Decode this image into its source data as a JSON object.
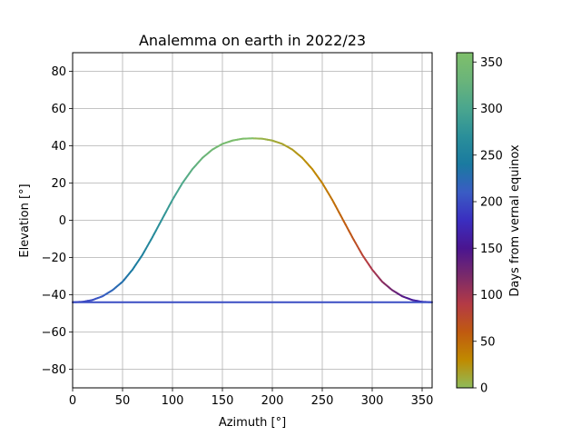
{
  "chart_data": {
    "type": "line",
    "title": "Analemma on earth in 2022/23",
    "xlabel": "Azimuth [°]",
    "ylabel": "Elevation [°]",
    "xlim": [
      0,
      360
    ],
    "ylim": [
      -90,
      90
    ],
    "xticks": [
      0,
      50,
      100,
      150,
      200,
      250,
      300,
      350
    ],
    "yticks": [
      -80,
      -60,
      -40,
      -20,
      0,
      20,
      40,
      60,
      80
    ],
    "grid": true,
    "colorbar": {
      "label": "Days from vernal equinox",
      "range": [
        0,
        360
      ],
      "ticks": [
        0,
        50,
        100,
        150,
        200,
        250,
        300,
        350
      ],
      "colormap": [
        "#8fbc5a",
        "#c08a00",
        "#c05a10",
        "#b43a45",
        "#7a2a6a",
        "#4a1590",
        "#3a2ec0",
        "#3a5cc4",
        "#1a7aa0",
        "#2a8f9a",
        "#4aa68e",
        "#6ab47a",
        "#7fbf6a"
      ]
    },
    "series": [
      {
        "type": "colored_line",
        "color_by": "days_from_vernal_equinox",
        "points": [
          {
            "azimuth": 180,
            "elevation": 44.0,
            "day": 0
          },
          {
            "azimuth": 190,
            "elevation": 43.8,
            "day": 5
          },
          {
            "azimuth": 200,
            "elevation": 42.8,
            "day": 10
          },
          {
            "azimuth": 210,
            "elevation": 41.0,
            "day": 15
          },
          {
            "azimuth": 220,
            "elevation": 38.0,
            "day": 20
          },
          {
            "azimuth": 230,
            "elevation": 33.5,
            "day": 25
          },
          {
            "azimuth": 240,
            "elevation": 27.5,
            "day": 30
          },
          {
            "azimuth": 250,
            "elevation": 20.0,
            "day": 36
          },
          {
            "azimuth": 260,
            "elevation": 11.0,
            "day": 45
          },
          {
            "azimuth": 270,
            "elevation": 1.0,
            "day": 55
          },
          {
            "azimuth": 280,
            "elevation": -9.0,
            "day": 65
          },
          {
            "azimuth": 290,
            "elevation": -18.5,
            "day": 80
          },
          {
            "azimuth": 300,
            "elevation": -26.5,
            "day": 95
          },
          {
            "azimuth": 310,
            "elevation": -33.0,
            "day": 110
          },
          {
            "azimuth": 320,
            "elevation": -37.5,
            "day": 125
          },
          {
            "azimuth": 330,
            "elevation": -40.8,
            "day": 140
          },
          {
            "azimuth": 340,
            "elevation": -42.8,
            "day": 155
          },
          {
            "azimuth": 350,
            "elevation": -43.8,
            "day": 168
          },
          {
            "azimuth": 360,
            "elevation": -44.0,
            "day": 180
          },
          {
            "azimuth": 0,
            "elevation": -44.0,
            "day": 180
          },
          {
            "azimuth": 10,
            "elevation": -43.8,
            "day": 190
          },
          {
            "azimuth": 20,
            "elevation": -42.8,
            "day": 200
          },
          {
            "azimuth": 30,
            "elevation": -40.8,
            "day": 210
          },
          {
            "azimuth": 40,
            "elevation": -37.5,
            "day": 220
          },
          {
            "azimuth": 50,
            "elevation": -33.0,
            "day": 230
          },
          {
            "azimuth": 60,
            "elevation": -26.5,
            "day": 240
          },
          {
            "azimuth": 70,
            "elevation": -18.5,
            "day": 250
          },
          {
            "azimuth": 80,
            "elevation": -9.0,
            "day": 262
          },
          {
            "azimuth": 90,
            "elevation": 1.0,
            "day": 275
          },
          {
            "azimuth": 100,
            "elevation": 11.0,
            "day": 290
          },
          {
            "azimuth": 110,
            "elevation": 20.0,
            "day": 305
          },
          {
            "azimuth": 120,
            "elevation": 27.5,
            "day": 318
          },
          {
            "azimuth": 130,
            "elevation": 33.5,
            "day": 330
          },
          {
            "azimuth": 140,
            "elevation": 38.0,
            "day": 340
          },
          {
            "azimuth": 150,
            "elevation": 41.0,
            "day": 348
          },
          {
            "azimuth": 160,
            "elevation": 42.8,
            "day": 354
          },
          {
            "azimuth": 170,
            "elevation": 43.8,
            "day": 358
          },
          {
            "azimuth": 180,
            "elevation": 44.0,
            "day": 360
          }
        ]
      },
      {
        "type": "flat_line",
        "elevation": -44.0,
        "azimuth_range": [
          0,
          360
        ],
        "day": 200
      }
    ]
  }
}
